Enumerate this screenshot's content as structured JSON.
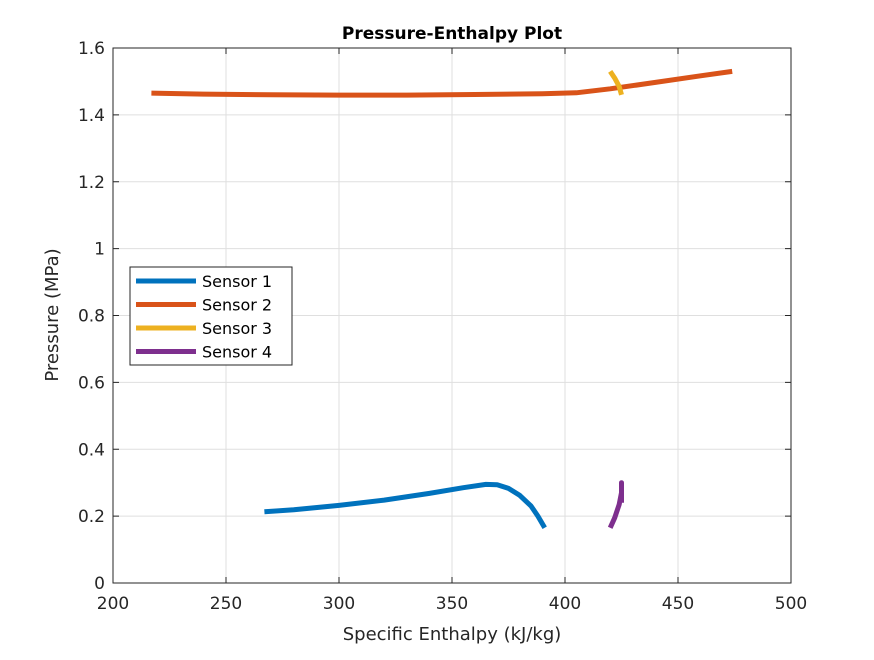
{
  "chart_data": {
    "type": "line",
    "title": "Pressure-Enthalpy Plot",
    "xlabel": "Specific Enthalpy (kJ/kg)",
    "ylabel": "Pressure (MPa)",
    "xlim": [
      200,
      500
    ],
    "ylim": [
      0,
      1.6
    ],
    "xticks": [
      200,
      250,
      300,
      350,
      400,
      450,
      500
    ],
    "yticks": [
      0,
      0.2,
      0.4,
      0.6,
      0.8,
      1,
      1.2,
      1.4,
      1.6
    ],
    "xtick_labels": [
      "200",
      "250",
      "300",
      "350",
      "400",
      "450",
      "500"
    ],
    "ytick_labels": [
      "0",
      "0.2",
      "0.4",
      "0.6",
      "0.8",
      "1",
      "1.2",
      "1.4",
      "1.6"
    ],
    "grid": true,
    "legend_position": "center-left",
    "series": [
      {
        "name": "Sensor 1",
        "color": "#0072BD",
        "x": [
          267,
          280,
          300,
          320,
          340,
          355,
          365,
          370,
          375,
          380,
          385,
          388,
          391
        ],
        "y": [
          0.213,
          0.219,
          0.232,
          0.248,
          0.268,
          0.285,
          0.295,
          0.294,
          0.283,
          0.262,
          0.23,
          0.2,
          0.165
        ]
      },
      {
        "name": "Sensor 2",
        "color": "#D95319",
        "x": [
          217,
          240,
          270,
          300,
          330,
          360,
          390,
          405,
          420,
          440,
          460,
          474
        ],
        "y": [
          1.465,
          1.462,
          1.46,
          1.459,
          1.459,
          1.461,
          1.463,
          1.466,
          1.478,
          1.497,
          1.517,
          1.53
        ],
        "points": 0
      },
      {
        "name": "Sensor 3",
        "color": "#EDB120",
        "x": [
          420,
          422,
          424,
          425
        ],
        "y": [
          1.53,
          1.51,
          1.485,
          1.46
        ]
      },
      {
        "name": "Sensor 4",
        "color": "#7E2F8E",
        "x": [
          420,
          422,
          424,
          425,
          425,
          425
        ],
        "y": [
          0.165,
          0.195,
          0.235,
          0.27,
          0.3,
          0.24
        ]
      }
    ]
  }
}
